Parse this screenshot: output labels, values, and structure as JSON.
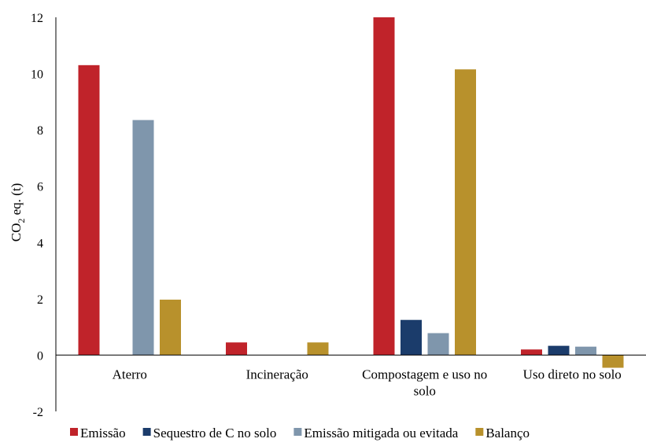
{
  "chart_data": {
    "type": "bar",
    "title": "",
    "xlabel": "",
    "ylabel": {
      "main": "CO",
      "sub": "2",
      "rest": " eq. (t)"
    },
    "ylim": [
      -2,
      12
    ],
    "yticks": [
      -2,
      0,
      2,
      4,
      6,
      8,
      10,
      12
    ],
    "grid": false,
    "legend_position": "bottom",
    "categories": [
      [
        "Aterro"
      ],
      [
        "Incineração"
      ],
      [
        "Compostagem e uso no",
        "solo"
      ],
      [
        "Uso direto no solo"
      ]
    ],
    "series": [
      {
        "name": "Emissão",
        "color": "#C0232A",
        "values": [
          10.3,
          0.45,
          12.0,
          0.2
        ]
      },
      {
        "name": "Sequestro de C no solo",
        "color": "#1B3C6B",
        "values": [
          0,
          0,
          1.25,
          0.33
        ]
      },
      {
        "name": "Emissão mitigada ou evitada",
        "color": "#7F96AC",
        "values": [
          8.35,
          0,
          0.78,
          0.3
        ]
      },
      {
        "name": "Balanço",
        "color": "#B8912C",
        "values": [
          1.97,
          0.45,
          10.15,
          -0.45
        ]
      }
    ]
  }
}
